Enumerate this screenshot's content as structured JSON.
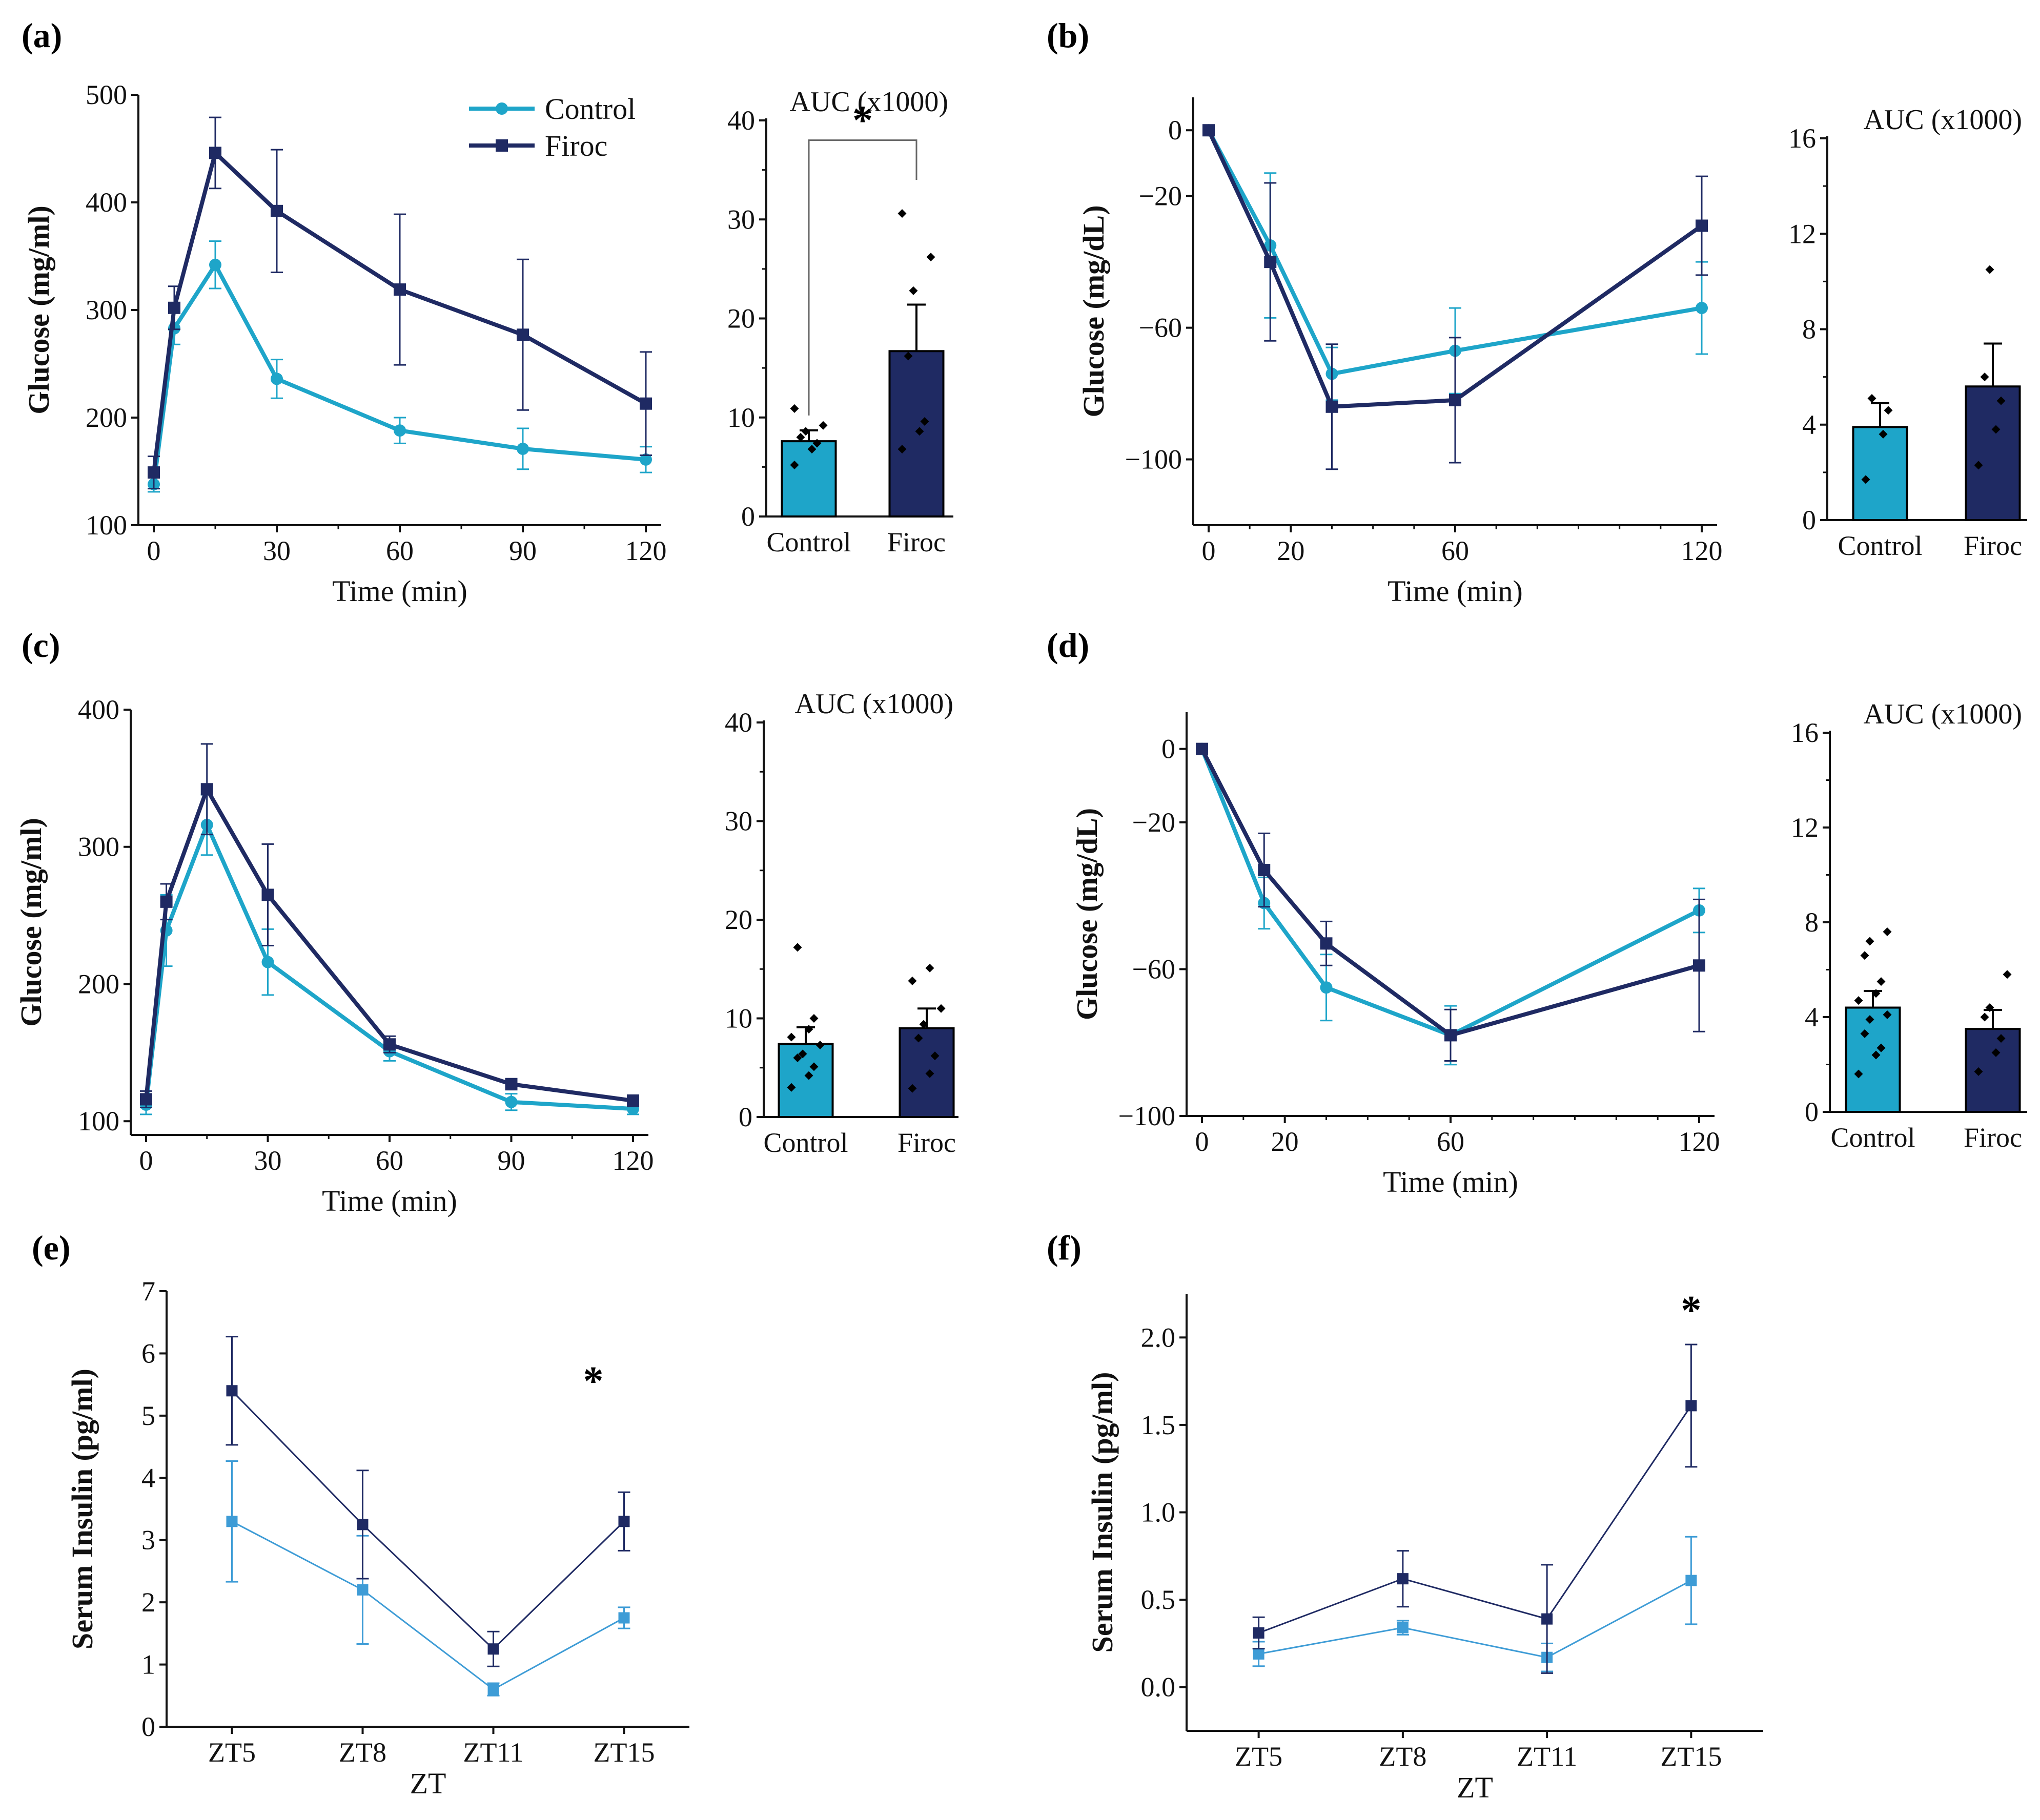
{
  "colors": {
    "control": "#1ea5c9",
    "firoc": "#1f2a63",
    "control_light": "#3e9cd6",
    "axis": "#111111"
  },
  "chart_data": [
    {
      "id": "a-line",
      "panel": "(a)",
      "type": "line",
      "ylabel": "Glucose (mg/ml)",
      "xlabel": "Time (min)",
      "xlim": [
        0,
        120
      ],
      "ylim": [
        100,
        500
      ],
      "xticks": [
        0,
        30,
        60,
        90,
        120
      ],
      "yticks": [
        100,
        200,
        300,
        400,
        500
      ],
      "legend": [
        "Control",
        "Firoc"
      ],
      "series": [
        {
          "name": "Control",
          "x": [
            0,
            5,
            15,
            30,
            60,
            90,
            120
          ],
          "y": [
            138,
            283,
            342,
            236,
            188,
            171,
            161
          ],
          "err": [
            7,
            15,
            22,
            18,
            12,
            19,
            12
          ]
        },
        {
          "name": "Firoc",
          "x": [
            0,
            5,
            15,
            30,
            60,
            90,
            120
          ],
          "y": [
            149,
            302,
            446,
            392,
            319,
            277,
            213
          ],
          "err": [
            15,
            20,
            33,
            57,
            70,
            70,
            48
          ]
        }
      ]
    },
    {
      "id": "a-bar",
      "type": "bar",
      "title": "AUC (x1000)",
      "categories": [
        "Control",
        "Firoc"
      ],
      "ylim": [
        0,
        40
      ],
      "yticks": [
        0,
        10,
        20,
        30,
        40
      ],
      "values": [
        7.6,
        16.7
      ],
      "err": [
        1.1,
        4.7
      ],
      "points": [
        [
          5.2,
          6.8,
          7.4,
          8.0,
          8.6,
          9.2,
          10.9
        ],
        [
          6.8,
          8.6,
          9.6,
          16.2,
          22.8,
          26.2,
          30.6
        ]
      ],
      "significance": "*"
    },
    {
      "id": "b-line",
      "panel": "(b)",
      "type": "line",
      "ylabel": "Glucose (mg/dL)",
      "xlabel": "Time (min)",
      "xlim": [
        0,
        120
      ],
      "ylim": [
        -120,
        10
      ],
      "xticks": [
        0,
        20,
        60,
        120
      ],
      "yticks": [
        0,
        -20,
        -60,
        -100
      ],
      "series": [
        {
          "name": "Control",
          "x": [
            0,
            15,
            30,
            60,
            120
          ],
          "y": [
            0,
            -35,
            -74,
            -67,
            -54
          ],
          "err": [
            0,
            22,
            8,
            13,
            14
          ]
        },
        {
          "name": "Firoc",
          "x": [
            0,
            15,
            30,
            60,
            120
          ],
          "y": [
            0,
            -40,
            -84,
            -82,
            -29
          ],
          "err": [
            0,
            24,
            19,
            19,
            15
          ]
        }
      ]
    },
    {
      "id": "b-bar",
      "type": "bar",
      "title": "AUC (x1000)",
      "categories": [
        "Control",
        "Firoc"
      ],
      "ylim": [
        0,
        16
      ],
      "yticks": [
        0,
        4,
        8,
        12,
        16
      ],
      "values": [
        3.9,
        5.6
      ],
      "err": [
        1.0,
        1.8
      ],
      "points": [
        [
          1.7,
          3.6,
          4.6,
          5.1
        ],
        [
          2.3,
          3.8,
          5.0,
          6.0,
          10.5
        ]
      ]
    },
    {
      "id": "c-line",
      "panel": "(c)",
      "type": "line",
      "ylabel": "Glucose (mg/ml)",
      "xlabel": "Time (min)",
      "xlim": [
        0,
        120
      ],
      "ylim": [
        90,
        400
      ],
      "xticks": [
        0,
        30,
        60,
        90,
        120
      ],
      "yticks": [
        100,
        200,
        300,
        400
      ],
      "series": [
        {
          "name": "Control",
          "x": [
            0,
            5,
            15,
            30,
            60,
            90,
            120
          ],
          "y": [
            112,
            239,
            316,
            216,
            151,
            114,
            109
          ],
          "err": [
            7,
            26,
            22,
            24,
            7,
            6,
            4
          ]
        },
        {
          "name": "Firoc",
          "x": [
            0,
            5,
            15,
            30,
            60,
            90,
            120
          ],
          "y": [
            116,
            260,
            342,
            265,
            156,
            127,
            115
          ],
          "err": [
            6,
            13,
            33,
            37,
            6,
            4,
            4
          ]
        }
      ]
    },
    {
      "id": "c-bar",
      "type": "bar",
      "title": "AUC (x1000)",
      "categories": [
        "Control",
        "Firoc"
      ],
      "ylim": [
        0,
        40
      ],
      "yticks": [
        0,
        10,
        20,
        30,
        40
      ],
      "values": [
        7.4,
        9.0
      ],
      "err": [
        1.7,
        2.0
      ],
      "points": [
        [
          3.0,
          4.2,
          5.1,
          6.0,
          6.4,
          7.3,
          8.1,
          8.9,
          10.0,
          17.2
        ],
        [
          2.9,
          4.4,
          6.2,
          8.0,
          9.4,
          11.0,
          13.8,
          15.1
        ]
      ]
    },
    {
      "id": "d-line",
      "panel": "(d)",
      "type": "line",
      "ylabel": "Glucose (mg/dL)",
      "xlabel": "Time (min)",
      "xlim": [
        0,
        120
      ],
      "ylim": [
        -100,
        10
      ],
      "xticks": [
        0,
        20,
        60,
        120
      ],
      "yticks": [
        0,
        -20,
        -60,
        -100
      ],
      "series": [
        {
          "name": "Control",
          "x": [
            0,
            15,
            30,
            60,
            120
          ],
          "y": [
            0,
            -42,
            -65,
            -78,
            -44
          ],
          "err": [
            0,
            7,
            9,
            8,
            6
          ]
        },
        {
          "name": "Firoc",
          "x": [
            0,
            15,
            30,
            60,
            120
          ],
          "y": [
            0,
            -33,
            -53,
            -78,
            -59
          ],
          "err": [
            0,
            10,
            6,
            7,
            18
          ]
        }
      ]
    },
    {
      "id": "d-bar",
      "type": "bar",
      "title": "AUC (x1000)",
      "categories": [
        "Control",
        "Firoc"
      ],
      "ylim": [
        0,
        16
      ],
      "yticks": [
        0,
        4,
        8,
        12,
        16
      ],
      "values": [
        4.4,
        3.5
      ],
      "err": [
        0.7,
        0.8
      ],
      "points": [
        [
          1.6,
          2.4,
          2.7,
          3.3,
          3.9,
          4.1,
          4.7,
          5.0,
          5.5,
          6.6,
          7.2,
          7.6
        ],
        [
          1.7,
          2.5,
          3.1,
          4.0,
          4.4,
          5.8
        ]
      ]
    },
    {
      "id": "e-line",
      "panel": "(e)",
      "type": "line",
      "ylabel": "Serum Insulin (pg/ml)",
      "xlabel": "ZT",
      "categories": [
        "ZT5",
        "ZT8",
        "ZT11",
        "ZT15"
      ],
      "ylim": [
        0,
        7
      ],
      "yticks": [
        0,
        1,
        2,
        3,
        4,
        5,
        6,
        7
      ],
      "series": [
        {
          "name": "Control",
          "y": [
            3.3,
            2.2,
            0.6,
            1.75
          ],
          "err": [
            0.97,
            0.87,
            0.1,
            0.17
          ]
        },
        {
          "name": "Firoc",
          "y": [
            5.4,
            3.25,
            1.25,
            3.3
          ],
          "err": [
            0.87,
            0.87,
            0.28,
            0.47
          ]
        }
      ],
      "significance": [
        {
          "index": 3,
          "label": "*"
        }
      ]
    },
    {
      "id": "f-line",
      "panel": "(f)",
      "type": "line",
      "ylabel": "Serum Insulin (pg/ml)",
      "xlabel": "ZT",
      "categories": [
        "ZT5",
        "ZT8",
        "ZT11",
        "ZT15"
      ],
      "ylim": [
        -0.25,
        2.25
      ],
      "yticks": [
        0.0,
        0.5,
        1.0,
        1.5,
        2.0
      ],
      "series": [
        {
          "name": "Control",
          "y": [
            0.19,
            0.34,
            0.17,
            0.61
          ],
          "err": [
            0.07,
            0.04,
            0.08,
            0.25
          ]
        },
        {
          "name": "Firoc",
          "y": [
            0.31,
            0.62,
            0.39,
            1.61
          ],
          "err": [
            0.09,
            0.16,
            0.31,
            0.35
          ]
        }
      ],
      "significance": [
        {
          "index": 3,
          "label": "*"
        }
      ]
    }
  ]
}
